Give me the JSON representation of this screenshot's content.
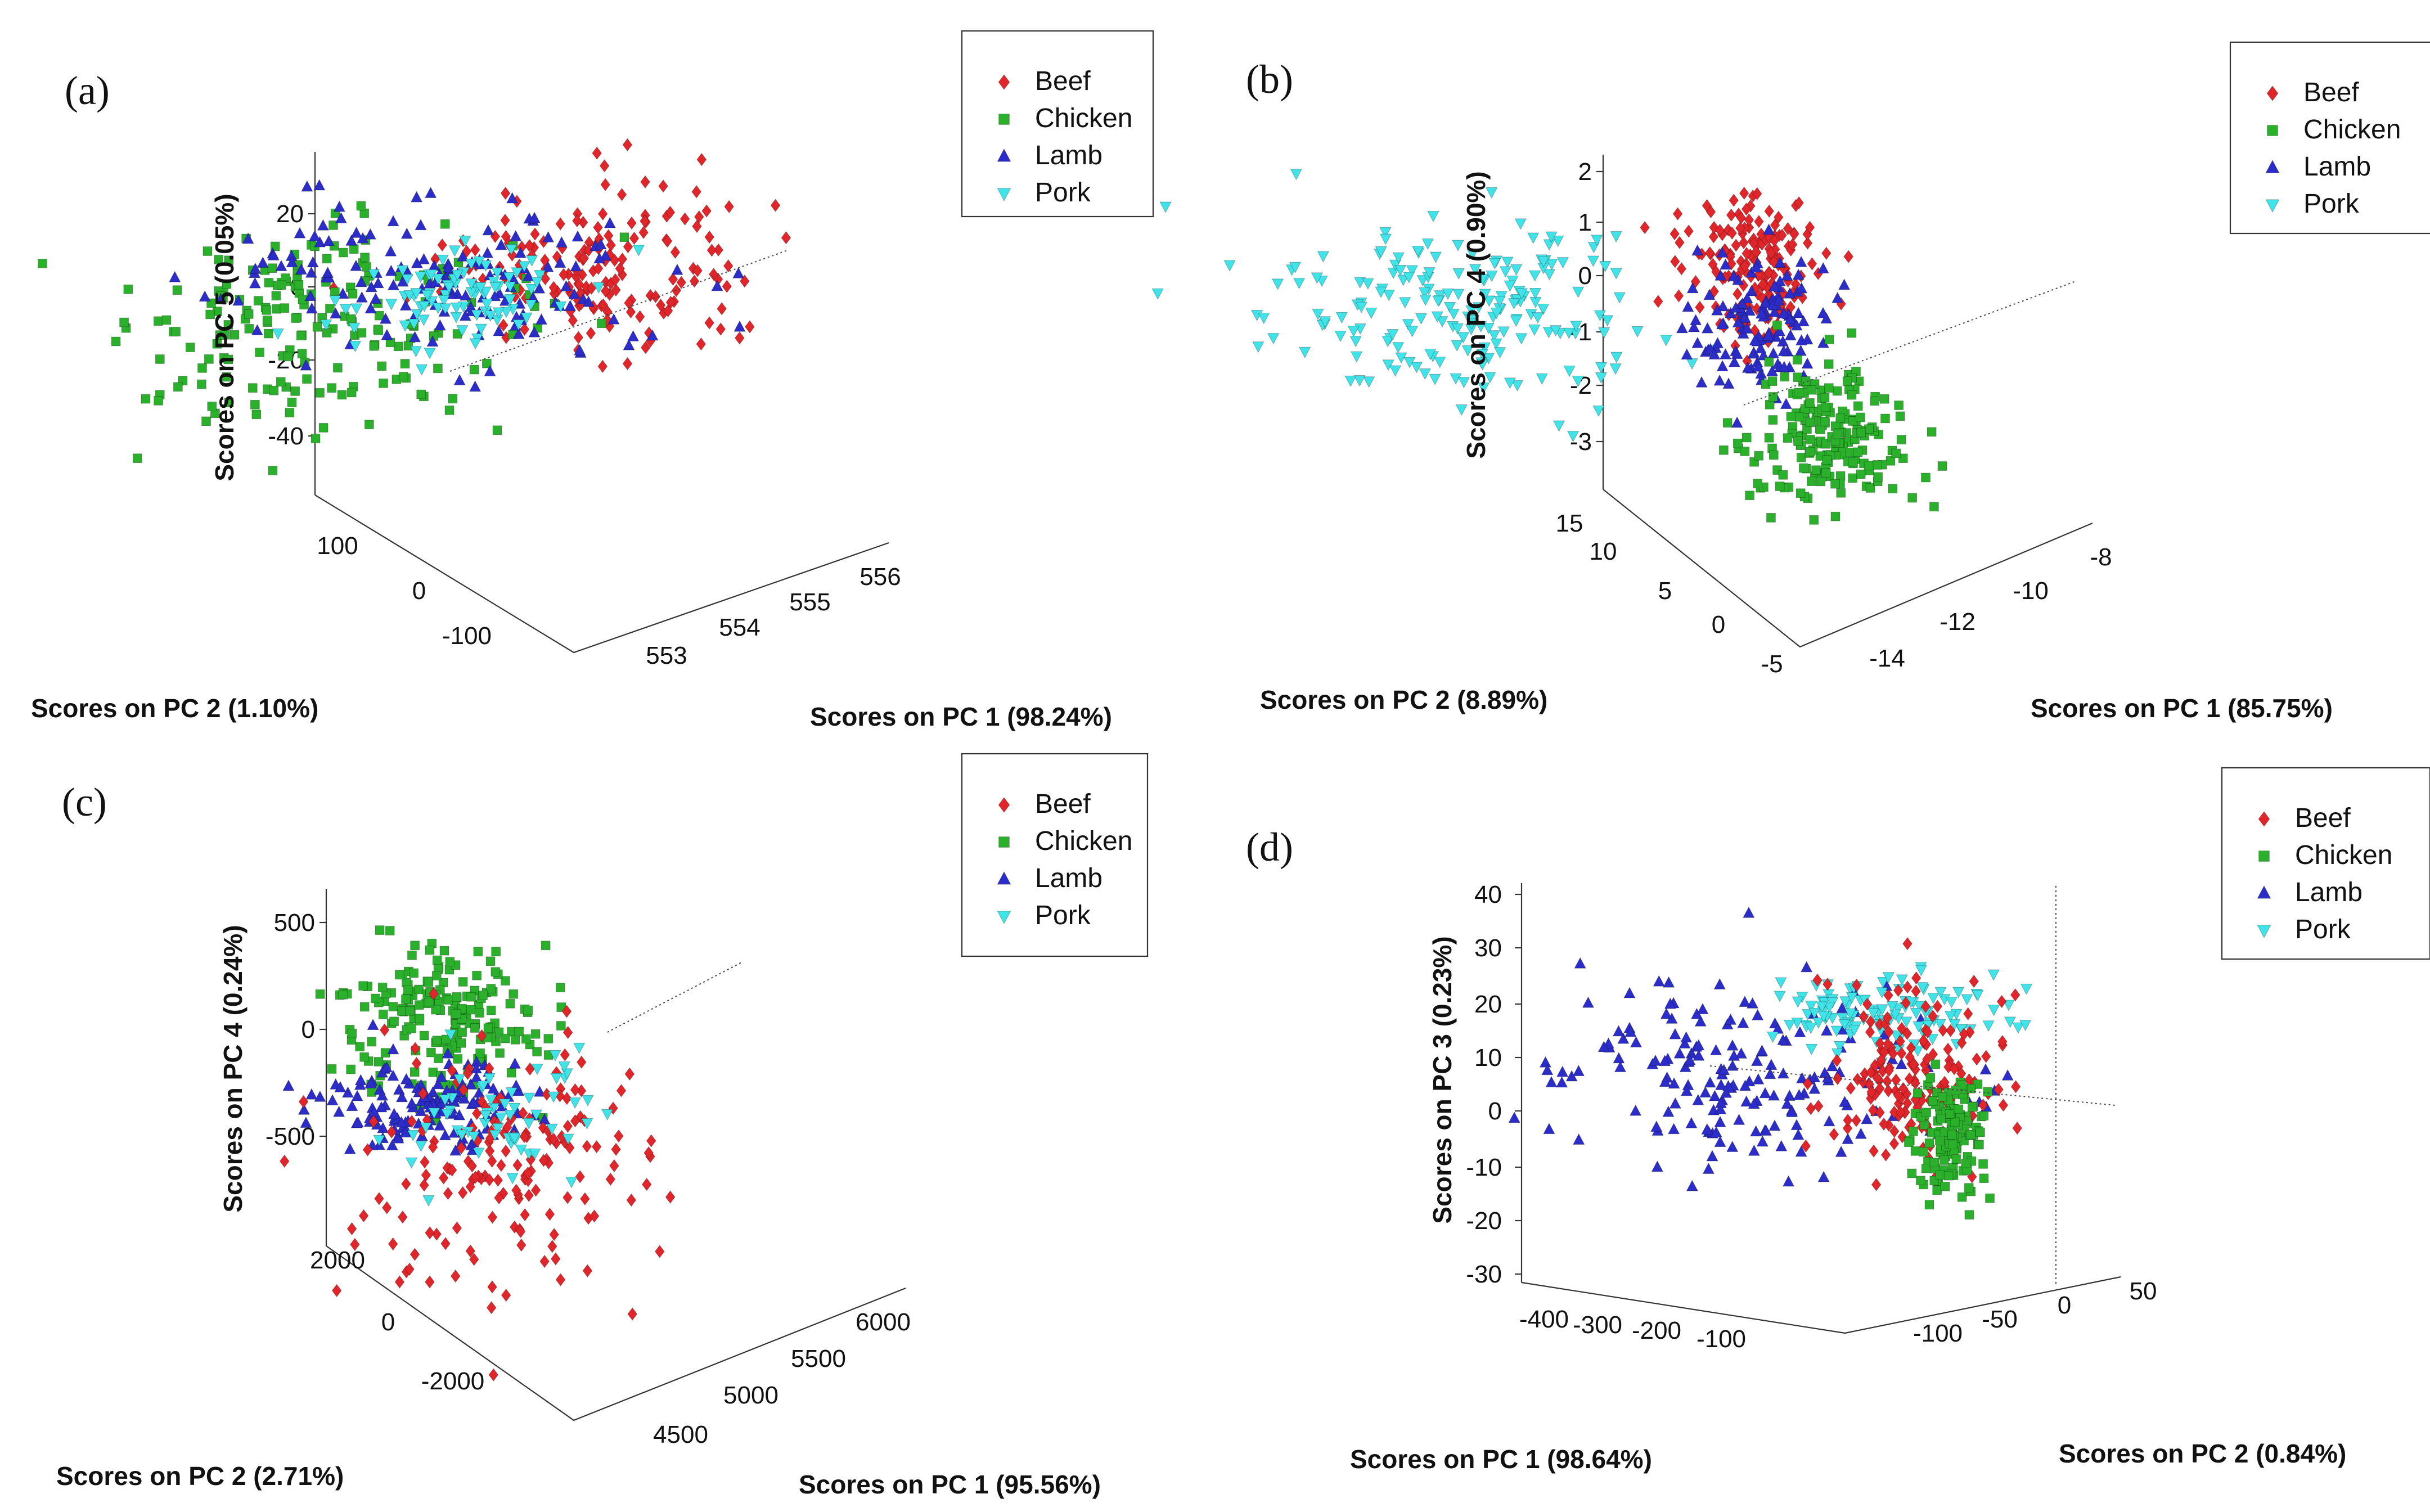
{
  "figure": {
    "description_title": ""
  },
  "colors": {
    "Beef": "#e0262b",
    "Chicken": "#2bb02b",
    "Lamb": "#2c2cc8",
    "Pork": "#3fe3e8"
  },
  "legend": [
    "Beef",
    "Chicken",
    "Lamb",
    "Pork"
  ],
  "chart_data": [
    {
      "id": "a",
      "type": "scatter",
      "panel_label": "(a)",
      "title": "",
      "xlabel": "Scores on PC 1 (98.24%)",
      "ylabel": "Scores on PC 2 (1.10%)",
      "zlabel": "Scores on PC 5 (0.05%)",
      "x_ticks": [
        "553",
        "554",
        "555",
        "556"
      ],
      "y_ticks": [
        "100",
        "0",
        "-100"
      ],
      "z_ticks": [
        "20",
        "0",
        "-20",
        "-40"
      ],
      "legend": [
        "Beef",
        "Chicken",
        "Lamb",
        "Pork"
      ],
      "series": [
        {
          "name": "Beef",
          "cx": 0.45,
          "cy": 0.25,
          "sx": 0.12,
          "sy": 0.12,
          "n": 170
        },
        {
          "name": "Chicken",
          "cx": 0.02,
          "cy": 0.4,
          "sx": 0.16,
          "sy": 0.14,
          "n": 190
        },
        {
          "name": "Lamb",
          "cx": 0.2,
          "cy": 0.27,
          "sx": 0.18,
          "sy": 0.12,
          "n": 160
        },
        {
          "name": "Pork",
          "cx": 0.23,
          "cy": 0.33,
          "sx": 0.1,
          "sy": 0.07,
          "n": 90
        }
      ]
    },
    {
      "id": "b",
      "type": "scatter",
      "panel_label": "(b)",
      "title": "",
      "xlabel": "Scores on PC 1 (85.75%)",
      "ylabel": "Scores on PC 2 (8.89%)",
      "zlabel": "Scores on PC 4 (0.90%)",
      "x_ticks": [
        "-14",
        "-12",
        "-10",
        "-8"
      ],
      "y_ticks": [
        "15",
        "10",
        "5",
        "0",
        "-5"
      ],
      "z_ticks": [
        "2",
        "1",
        "0",
        "-1",
        "-2",
        "-3"
      ],
      "legend": [
        "Beef",
        "Chicken",
        "Lamb",
        "Pork"
      ],
      "series": [
        {
          "name": "Pork",
          "cx": -0.25,
          "cy": 0.3,
          "sx": 0.18,
          "sy": 0.12,
          "n": 200
        },
        {
          "name": "Beef",
          "cx": 0.33,
          "cy": 0.18,
          "sx": 0.07,
          "sy": 0.1,
          "n": 170
        },
        {
          "name": "Lamb",
          "cx": 0.33,
          "cy": 0.34,
          "sx": 0.07,
          "sy": 0.08,
          "n": 130
        },
        {
          "name": "Chicken",
          "cx": 0.47,
          "cy": 0.62,
          "sx": 0.08,
          "sy": 0.09,
          "n": 200
        }
      ]
    },
    {
      "id": "c",
      "type": "scatter",
      "panel_label": "(c)",
      "title": "",
      "xlabel": "Scores on PC 1 (95.56%)",
      "ylabel": "Scores on PC 2 (2.71%)",
      "zlabel": "Scores on PC 4 (0.24%)",
      "x_ticks": [
        "4500",
        "5000",
        "5500",
        "6000"
      ],
      "y_ticks": [
        "2000",
        "0",
        "-2000"
      ],
      "z_ticks": [
        "500",
        "0",
        "-500"
      ],
      "legend": [
        "Beef",
        "Chicken",
        "Lamb",
        "Pork"
      ],
      "series": [
        {
          "name": "Chicken",
          "cx": 0.18,
          "cy": 0.24,
          "sx": 0.12,
          "sy": 0.1,
          "n": 200
        },
        {
          "name": "Lamb",
          "cx": 0.14,
          "cy": 0.46,
          "sx": 0.12,
          "sy": 0.06,
          "n": 150
        },
        {
          "name": "Beef",
          "cx": 0.3,
          "cy": 0.6,
          "sx": 0.17,
          "sy": 0.17,
          "n": 170
        },
        {
          "name": "Pork",
          "cx": 0.3,
          "cy": 0.5,
          "sx": 0.12,
          "sy": 0.08,
          "n": 60
        }
      ]
    },
    {
      "id": "d",
      "type": "scatter",
      "panel_label": "(d)",
      "title": "",
      "xlabel": "Scores on PC 1 (98.64%)",
      "ylabel": "Scores on PC 2 (0.84%)",
      "zlabel": "Scores on PC 3 (0.23%)",
      "x_ticks": [
        "-400",
        "-300",
        "-200",
        "-100"
      ],
      "y_ticks": [
        "-100",
        "-50",
        "0",
        "50"
      ],
      "z_ticks": [
        "40",
        "30",
        "20",
        "10",
        "0",
        "-10",
        "-20",
        "-30"
      ],
      "legend": [
        "Beef",
        "Chicken",
        "Lamb",
        "Pork"
      ],
      "series": [
        {
          "name": "Lamb",
          "cx": 0.18,
          "cy": 0.45,
          "sx": 0.22,
          "sy": 0.12,
          "n": 180
        },
        {
          "name": "Pork",
          "cx": 0.52,
          "cy": 0.3,
          "sx": 0.13,
          "sy": 0.05,
          "n": 120
        },
        {
          "name": "Beef",
          "cx": 0.58,
          "cy": 0.45,
          "sx": 0.1,
          "sy": 0.12,
          "n": 170
        },
        {
          "name": "Chicken",
          "cx": 0.66,
          "cy": 0.6,
          "sx": 0.04,
          "sy": 0.08,
          "n": 140
        }
      ]
    }
  ]
}
